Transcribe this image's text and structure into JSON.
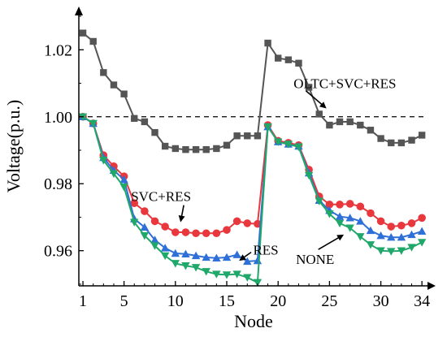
{
  "chart_data": {
    "type": "line",
    "xlabel": "Node",
    "ylabel": "Voltage(p.u.)",
    "xlim": [
      0.6,
      34.7
    ],
    "ylim": [
      0.9495,
      1.0305
    ],
    "x_ticks": [
      1,
      5,
      10,
      15,
      20,
      25,
      30,
      34
    ],
    "y_ticks": [
      0.96,
      0.98,
      1.0,
      1.02
    ],
    "y_tick_labels": [
      "0.96",
      "0.98",
      "1.00",
      "1.02"
    ],
    "reference_line": {
      "y": 1.0,
      "style": "dashed"
    },
    "x": [
      1,
      2,
      3,
      4,
      5,
      6,
      7,
      8,
      9,
      10,
      11,
      12,
      13,
      14,
      15,
      16,
      17,
      18,
      19,
      20,
      21,
      22,
      23,
      24,
      25,
      26,
      27,
      28,
      29,
      30,
      31,
      32,
      33,
      34
    ],
    "series": [
      {
        "color": "#555555",
        "marker": "square",
        "values": [
          1.025,
          1.0225,
          1.0132,
          1.0095,
          1.0068,
          0.9995,
          0.9985,
          0.9953,
          0.9912,
          0.9905,
          0.9902,
          0.9902,
          0.9902,
          0.9905,
          0.9915,
          0.9943,
          0.9943,
          0.9943,
          1.022,
          1.0175,
          1.017,
          1.016,
          1.0088,
          1.0008,
          0.9975,
          0.9985,
          0.9985,
          0.9975,
          0.996,
          0.9935,
          0.9922,
          0.9922,
          0.993,
          0.9945
        ]
      },
      {
        "color": "#e8383d",
        "marker": "circle",
        "values": [
          1.0,
          0.998,
          0.9885,
          0.9852,
          0.9822,
          0.9742,
          0.9718,
          0.9688,
          0.9672,
          0.9655,
          0.9655,
          0.9652,
          0.9652,
          0.9652,
          0.9662,
          0.9688,
          0.9682,
          0.968,
          0.9975,
          0.9928,
          0.9922,
          0.9915,
          0.9842,
          0.9762,
          0.9738,
          0.9738,
          0.974,
          0.9732,
          0.9712,
          0.9688,
          0.9672,
          0.9675,
          0.9682,
          0.9698
        ]
      },
      {
        "color": "#2f6fd8",
        "marker": "triangle-up",
        "values": [
          1.0,
          0.998,
          0.9878,
          0.984,
          0.9812,
          0.9695,
          0.967,
          0.9632,
          0.9608,
          0.9592,
          0.959,
          0.9585,
          0.958,
          0.9578,
          0.958,
          0.9588,
          0.9568,
          0.957,
          0.997,
          0.9925,
          0.9918,
          0.9912,
          0.9832,
          0.975,
          0.972,
          0.9702,
          0.9698,
          0.9688,
          0.966,
          0.9645,
          0.964,
          0.964,
          0.9648,
          0.9658
        ]
      },
      {
        "color": "#20a86a",
        "marker": "triangle-down",
        "values": [
          1.0,
          0.998,
          0.987,
          0.983,
          0.979,
          0.9685,
          0.9645,
          0.9615,
          0.9585,
          0.9562,
          0.9555,
          0.955,
          0.9538,
          0.953,
          0.9528,
          0.953,
          0.952,
          0.9505,
          0.997,
          0.9925,
          0.9918,
          0.991,
          0.9825,
          0.9748,
          0.971,
          0.9682,
          0.9668,
          0.9642,
          0.9618,
          0.96,
          0.9598,
          0.96,
          0.961,
          0.9625
        ]
      }
    ],
    "annotations": [
      {
        "text": "OLTC+SVC+RES",
        "x": 26.5,
        "y": 1.0085,
        "arrow_to": [
          24.7,
          1.0025
        ]
      },
      {
        "text": "SVC+RES",
        "x": 8.6,
        "y": 0.9748,
        "arrow_to": [
          10.5,
          0.9685
        ]
      },
      {
        "text": "RES",
        "x": 18.8,
        "y": 0.9588,
        "arrow_to": [
          16.2,
          0.957
        ]
      },
      {
        "text": "NONE",
        "x": 23.6,
        "y": 0.956,
        "arrow_to": [
          26.4,
          0.9648
        ]
      }
    ]
  }
}
